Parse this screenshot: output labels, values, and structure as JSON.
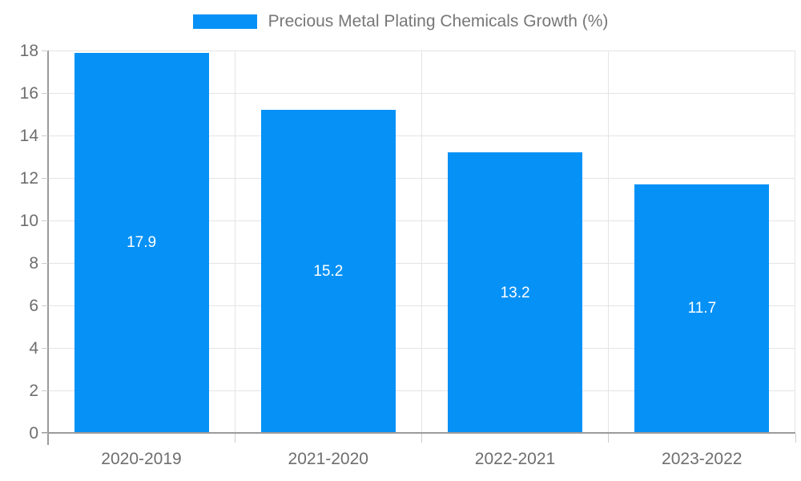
{
  "legend": {
    "label": "Precious Metal Plating Chemicals Growth (%)"
  },
  "chart_data": {
    "type": "bar",
    "title": "Precious Metal Plating Chemicals Growth (%)",
    "categories": [
      "2020-2019",
      "2021-2020",
      "2022-2021",
      "2023-2022"
    ],
    "values": [
      17.9,
      15.2,
      13.2,
      11.7
    ],
    "value_labels": [
      "17.9",
      "15.2",
      "13.2",
      "11.7"
    ],
    "xlabel": "",
    "ylabel": "",
    "ylim": [
      0,
      18
    ],
    "ytick_step": 2,
    "ytick_labels": [
      "0",
      "2",
      "4",
      "6",
      "8",
      "10",
      "12",
      "14",
      "16",
      "18"
    ],
    "grid": true,
    "legend_position": "top"
  },
  "colors": {
    "bar": "#0691F6",
    "grid": "#E4E4E4",
    "tick": "#CCCCCC",
    "axis": "#9B9B9B",
    "tick_label": "#6E6E6E",
    "legend_label": "#777777",
    "value_label": "#FFFFFF",
    "background": "#FFFFFF"
  }
}
